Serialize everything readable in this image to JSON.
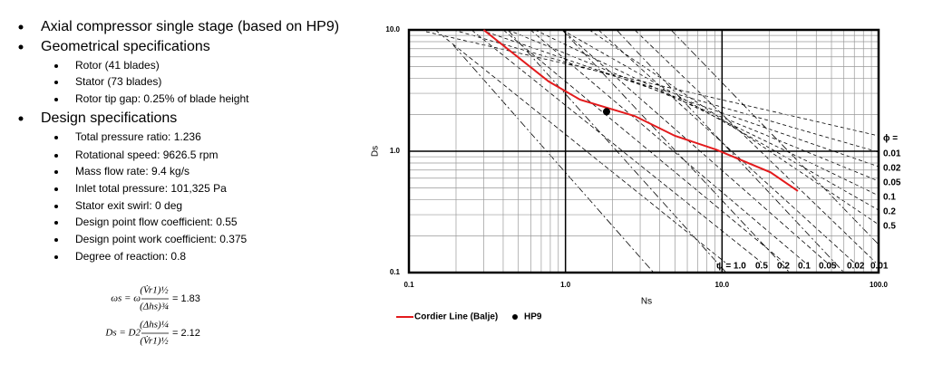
{
  "bullets": [
    {
      "text": "Axial compressor single stage (based on HP9)",
      "items": []
    },
    {
      "text": "Geometrical specifications",
      "items": [
        "Rotor (41 blades)",
        "Stator (73 blades)",
        "Rotor tip gap: 0.25% of blade height"
      ]
    },
    {
      "text": "Design specifications",
      "items": [
        "Total pressure ratio: 1.236",
        "Rotational speed: 9626.5 rpm",
        "Mass flow rate: 9.4 kg/s",
        "Inlet total pressure: 101,325 Pa",
        "Stator exit swirl: 0 deg",
        "Design point flow coefficient: 0.55",
        "Design point work coefficient: 0.375",
        "Degree of reaction: 0.8"
      ]
    }
  ],
  "formulas": [
    {
      "lhs": "ωs = ω",
      "num": "(V̇r1)½",
      "den": "(Δhs)¾",
      "result": "= 1.83"
    },
    {
      "lhs": "Ds = D2",
      "num": "(Δhs)¼",
      "den": "(V̇r1)½",
      "result": "= 2.12"
    }
  ],
  "chart_data": {
    "type": "line",
    "xlabel": "Ns",
    "ylabel": "Ds",
    "xscale": "log",
    "yscale": "log",
    "grid": true,
    "xlim": [
      0.1,
      100
    ],
    "ylim": [
      0.1,
      10
    ],
    "xticks": [
      0.1,
      {
        "value": 1,
        "label": "1.0"
      },
      {
        "value": 10,
        "label": "10.0"
      },
      {
        "value": 100,
        "label": "100.0"
      }
    ],
    "yticks": [
      0.1,
      {
        "value": 1,
        "label": "1.0"
      },
      {
        "value": 10,
        "label": "10.0"
      }
    ],
    "x": [
      0.3,
      0.78,
      1.24,
      2.77,
      5.0,
      9.2,
      20.4,
      30.5
    ],
    "series": [
      {
        "name": "Cordier Line (Balje)",
        "color": "#e31a1c",
        "values": [
          10,
          3.76,
          2.66,
          1.95,
          1.34,
          1.03,
          0.67,
          0.47
        ]
      }
    ],
    "points": [
      {
        "name": "HP9",
        "color": "#000000",
        "x": 1.83,
        "y": 2.12
      }
    ],
    "phi_labels": [
      "ϕ =",
      "0.01",
      "0.02",
      "0.05",
      "0.1",
      "0.2",
      "0.5"
    ],
    "psi_labels": [
      "ψ = 1.0",
      "0.5",
      "0.2",
      "0.1",
      "0.05",
      "0.02",
      "0.01"
    ]
  }
}
